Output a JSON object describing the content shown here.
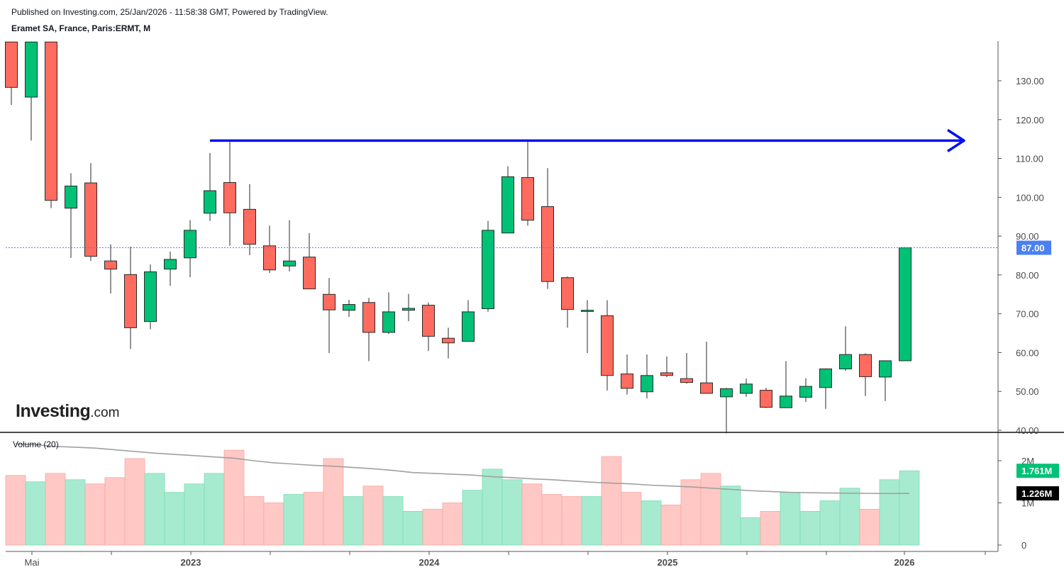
{
  "header": {
    "published": "Published on Investing.com, 25/Jan/2026 - 11:58:38 GMT, Powered by TradingView.",
    "symbol": "Eramet SA, France, Paris:ERMT, M"
  },
  "logo": {
    "main": "Investing",
    "suffix": ".com"
  },
  "colors": {
    "up": "#00c176",
    "down": "#ff6b5e",
    "up_vol": "#a6ebcf",
    "down_vol": "#ffc8c4",
    "resistance": "#0011ee",
    "last_price_tag": "#4a80f0",
    "ma_line": "#a0a0a0"
  },
  "chart_data": [
    {
      "type": "candlestick",
      "title": "Eramet SA, France, Paris:ERMT, M",
      "y_ticks": [
        "130.00",
        "120.00",
        "110.00",
        "100.00",
        "90.00",
        "80.00",
        "70.00",
        "60.00",
        "50.00",
        "40.00"
      ],
      "x_ticks": [
        "Mai",
        "2023",
        "2024",
        "2025",
        "2026"
      ],
      "ylim": [
        40,
        140
      ],
      "last_price": 87.0,
      "last_price_label": "87.00",
      "resistance_level": 114.6,
      "candles": [
        {
          "o": 140.0,
          "h": 140.0,
          "l": 123.8,
          "c": 128.3
        },
        {
          "o": 125.8,
          "h": 140.0,
          "l": 114.6,
          "c": 140.0
        },
        {
          "o": 140.0,
          "h": 140.0,
          "l": 97.2,
          "c": 99.2
        },
        {
          "o": 97.2,
          "h": 106.2,
          "l": 84.4,
          "c": 102.9
        },
        {
          "o": 103.7,
          "h": 108.8,
          "l": 83.6,
          "c": 84.8
        },
        {
          "o": 83.6,
          "h": 87.9,
          "l": 75.2,
          "c": 81.5
        },
        {
          "o": 80.1,
          "h": 87.3,
          "l": 60.9,
          "c": 66.4
        },
        {
          "o": 68.0,
          "h": 82.7,
          "l": 66.0,
          "c": 80.8
        },
        {
          "o": 81.5,
          "h": 86.0,
          "l": 77.2,
          "c": 84.0
        },
        {
          "o": 84.4,
          "h": 94.1,
          "l": 79.4,
          "c": 91.5
        },
        {
          "o": 95.9,
          "h": 111.4,
          "l": 93.9,
          "c": 101.7
        },
        {
          "o": 103.8,
          "h": 114.6,
          "l": 87.5,
          "c": 96.0
        },
        {
          "o": 96.9,
          "h": 103.4,
          "l": 85.1,
          "c": 87.9
        },
        {
          "o": 87.5,
          "h": 92.7,
          "l": 80.5,
          "c": 81.3
        },
        {
          "o": 82.3,
          "h": 94.1,
          "l": 80.9,
          "c": 83.6
        },
        {
          "o": 84.6,
          "h": 90.8,
          "l": 76.4,
          "c": 76.4
        },
        {
          "o": 75.0,
          "h": 79.2,
          "l": 59.9,
          "c": 71.0
        },
        {
          "o": 70.9,
          "h": 73.6,
          "l": 69.2,
          "c": 72.4
        },
        {
          "o": 72.9,
          "h": 74.1,
          "l": 57.8,
          "c": 65.2
        },
        {
          "o": 65.2,
          "h": 75.5,
          "l": 64.8,
          "c": 70.5
        },
        {
          "o": 70.9,
          "h": 75.1,
          "l": 68.1,
          "c": 71.4
        },
        {
          "o": 72.2,
          "h": 72.9,
          "l": 60.4,
          "c": 64.2
        },
        {
          "o": 63.7,
          "h": 66.4,
          "l": 58.5,
          "c": 62.5
        },
        {
          "o": 62.9,
          "h": 73.5,
          "l": 62.9,
          "c": 70.5
        },
        {
          "o": 71.3,
          "h": 93.9,
          "l": 70.5,
          "c": 91.5
        },
        {
          "o": 90.8,
          "h": 108.0,
          "l": 90.8,
          "c": 105.3
        },
        {
          "o": 105.1,
          "h": 114.6,
          "l": 92.7,
          "c": 94.1
        },
        {
          "o": 97.6,
          "h": 107.5,
          "l": 76.4,
          "c": 78.3
        },
        {
          "o": 79.3,
          "h": 79.6,
          "l": 66.4,
          "c": 71.1
        },
        {
          "o": 70.6,
          "h": 73.5,
          "l": 59.9,
          "c": 70.9
        },
        {
          "o": 69.5,
          "h": 73.5,
          "l": 50.2,
          "c": 54.1
        },
        {
          "o": 54.5,
          "h": 59.5,
          "l": 49.2,
          "c": 50.8
        },
        {
          "o": 49.9,
          "h": 59.5,
          "l": 48.2,
          "c": 54.1
        },
        {
          "o": 54.8,
          "h": 59.0,
          "l": 53.7,
          "c": 54.1
        },
        {
          "o": 53.3,
          "h": 59.9,
          "l": 52.0,
          "c": 52.3
        },
        {
          "o": 52.2,
          "h": 62.8,
          "l": 49.5,
          "c": 49.5
        },
        {
          "o": 48.6,
          "h": 50.9,
          "l": 39.2,
          "c": 50.7
        },
        {
          "o": 49.5,
          "h": 53.3,
          "l": 48.6,
          "c": 51.9
        },
        {
          "o": 50.3,
          "h": 50.9,
          "l": 45.7,
          "c": 45.9
        },
        {
          "o": 45.8,
          "h": 57.8,
          "l": 45.8,
          "c": 48.8
        },
        {
          "o": 48.5,
          "h": 53.4,
          "l": 47.3,
          "c": 51.3
        },
        {
          "o": 51.0,
          "h": 55.9,
          "l": 45.5,
          "c": 55.8
        },
        {
          "o": 55.8,
          "h": 66.8,
          "l": 55.3,
          "c": 59.5
        },
        {
          "o": 59.5,
          "h": 59.8,
          "l": 48.8,
          "c": 53.8
        },
        {
          "o": 53.7,
          "h": 57.9,
          "l": 47.5,
          "c": 57.9
        },
        {
          "o": 57.9,
          "h": 87.0,
          "l": 57.9,
          "c": 87.0
        }
      ]
    },
    {
      "type": "bar",
      "title": "Volume (20)",
      "y_ticks": [
        "2M",
        "1M",
        "0"
      ],
      "ylim": [
        0,
        2400000
      ],
      "last_volume_label": "1.761M",
      "ma_label": "1.226M",
      "volumes": [
        1650000,
        1500000,
        1700000,
        1550000,
        1450000,
        1600000,
        2050000,
        1700000,
        1250000,
        1450000,
        1700000,
        2250000,
        1150000,
        1000000,
        1200000,
        1250000,
        2050000,
        1150000,
        1400000,
        1150000,
        800000,
        850000,
        1000000,
        1300000,
        1800000,
        1550000,
        1450000,
        1200000,
        1150000,
        1150000,
        2100000,
        1250000,
        1050000,
        950000,
        1550000,
        1700000,
        1400000,
        650000,
        800000,
        1250000,
        800000,
        1050000,
        1350000,
        850000,
        1550000,
        1761000
      ],
      "ma20": [
        2400000,
        2380000,
        2340000,
        2320000,
        2300000,
        2260000,
        2220000,
        2180000,
        2150000,
        2120000,
        2090000,
        2060000,
        2000000,
        1950000,
        1920000,
        1890000,
        1870000,
        1840000,
        1810000,
        1770000,
        1720000,
        1700000,
        1680000,
        1660000,
        1620000,
        1600000,
        1570000,
        1550000,
        1520000,
        1490000,
        1470000,
        1450000,
        1420000,
        1400000,
        1380000,
        1350000,
        1320000,
        1290000,
        1270000,
        1250000,
        1240000,
        1235000,
        1230000,
        1225000,
        1222000,
        1226000
      ]
    }
  ]
}
